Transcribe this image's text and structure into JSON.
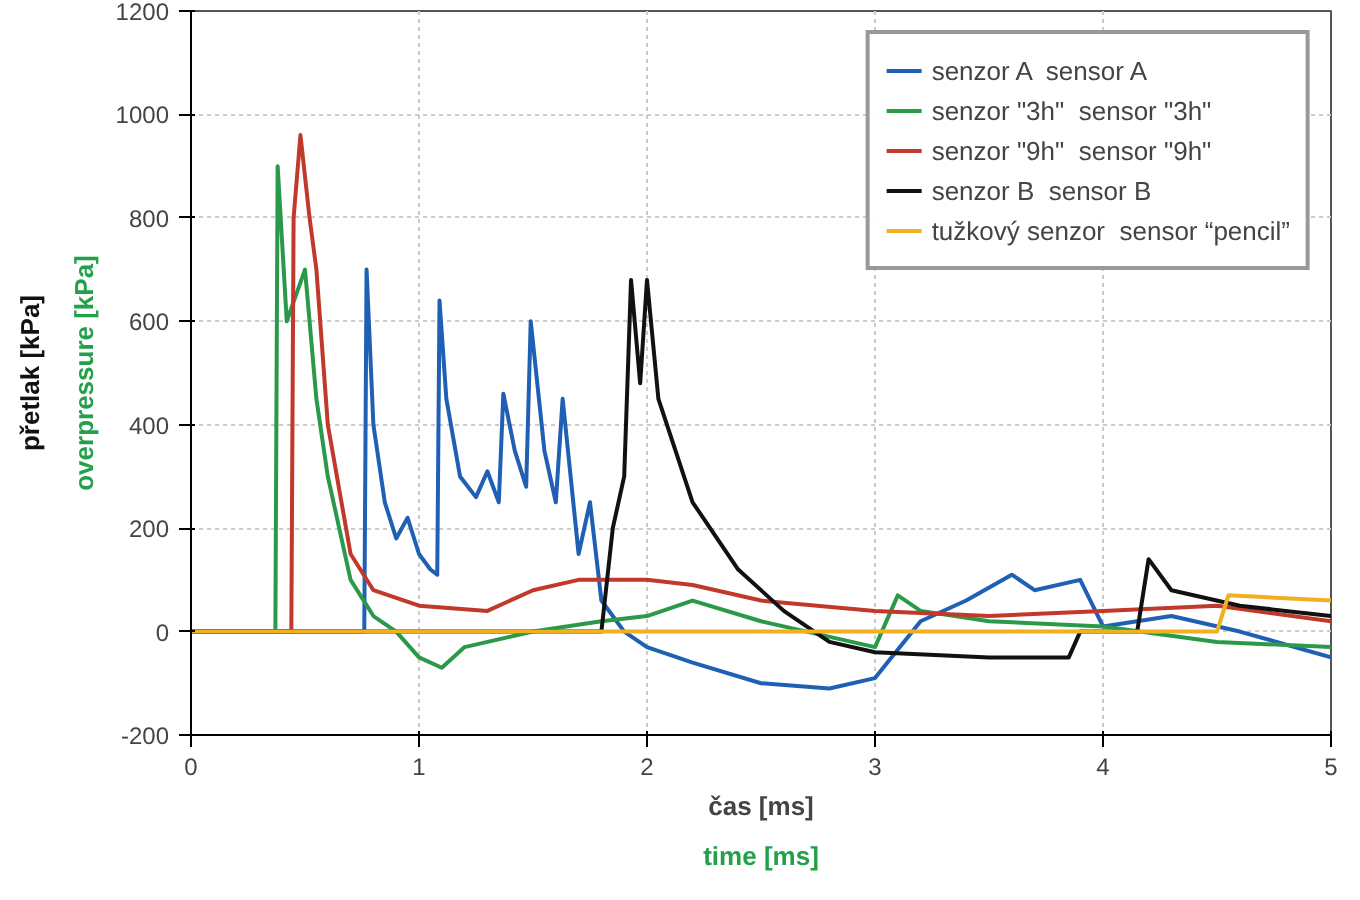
{
  "chart_data": {
    "type": "line",
    "xlabel": "čas [ms]",
    "ylabel": "přetlak [kPa]",
    "annotations": [
      "time [ms]",
      "overpressure [kPa]"
    ],
    "xlim": [
      0,
      5
    ],
    "ylim": [
      -200,
      1200
    ],
    "xticks": [
      0,
      1,
      2,
      3,
      4,
      5
    ],
    "yticks": [
      -200,
      0,
      200,
      400,
      600,
      800,
      1000,
      1200
    ],
    "grid": true,
    "legend": "top right",
    "line_style": "solid",
    "series": [
      {
        "name": "senzor A  sensor A",
        "color": "#1f5fb4",
        "x": [
          0,
          0.5,
          0.76,
          0.77,
          0.8,
          0.85,
          0.9,
          0.95,
          1.0,
          1.05,
          1.08,
          1.09,
          1.12,
          1.18,
          1.25,
          1.3,
          1.35,
          1.37,
          1.42,
          1.47,
          1.49,
          1.55,
          1.6,
          1.63,
          1.7,
          1.75,
          1.8,
          1.9,
          2.0,
          2.2,
          2.5,
          2.8,
          3.0,
          3.2,
          3.4,
          3.6,
          3.7,
          3.9,
          4.0,
          4.3,
          4.6,
          5.0
        ],
        "values": [
          0,
          0,
          0,
          700,
          400,
          250,
          180,
          220,
          150,
          120,
          110,
          640,
          450,
          300,
          260,
          310,
          250,
          460,
          350,
          280,
          600,
          350,
          250,
          450,
          150,
          250,
          60,
          0,
          -30,
          -60,
          -100,
          -110,
          -90,
          20,
          60,
          110,
          80,
          100,
          10,
          30,
          0,
          -50
        ]
      },
      {
        "name": "senzor \"3h\"  sensor \"3h\"",
        "color": "#2a9a4a",
        "x": [
          0,
          0.37,
          0.38,
          0.42,
          0.46,
          0.5,
          0.55,
          0.6,
          0.7,
          0.8,
          0.9,
          1.0,
          1.1,
          1.2,
          1.5,
          1.8,
          2.0,
          2.2,
          2.5,
          3.0,
          3.1,
          3.2,
          3.5,
          4.0,
          4.5,
          5.0
        ],
        "values": [
          0,
          0,
          900,
          600,
          650,
          700,
          450,
          300,
          100,
          30,
          0,
          -50,
          -70,
          -30,
          0,
          20,
          30,
          60,
          20,
          -30,
          70,
          40,
          20,
          10,
          -20,
          -30
        ]
      },
      {
        "name": "senzor \"9h\"  sensor \"9h\"",
        "color": "#c0392b",
        "x": [
          0,
          0.44,
          0.45,
          0.48,
          0.52,
          0.55,
          0.6,
          0.7,
          0.8,
          1.0,
          1.3,
          1.5,
          1.7,
          2.0,
          2.2,
          2.5,
          3.0,
          3.5,
          4.0,
          4.5,
          5.0
        ],
        "values": [
          0,
          0,
          800,
          960,
          800,
          700,
          400,
          150,
          80,
          50,
          40,
          80,
          100,
          100,
          90,
          60,
          40,
          30,
          40,
          50,
          20
        ]
      },
      {
        "name": "senzor B  sensor B",
        "color": "#111111",
        "x": [
          0,
          1.8,
          1.85,
          1.9,
          1.93,
          1.97,
          2.0,
          2.05,
          2.2,
          2.4,
          2.6,
          2.8,
          3.0,
          3.5,
          3.85,
          3.9,
          4.15,
          4.2,
          4.3,
          4.6,
          5.0
        ],
        "values": [
          0,
          0,
          200,
          300,
          680,
          480,
          680,
          450,
          250,
          120,
          40,
          -20,
          -40,
          -50,
          -50,
          0,
          0,
          140,
          80,
          50,
          30
        ]
      },
      {
        "name": "tužkový senzor  sensor “pencil”",
        "color": "#f0b020",
        "x": [
          0,
          4.5,
          4.55,
          5.0
        ],
        "values": [
          0,
          0,
          70,
          60
        ]
      }
    ]
  }
}
